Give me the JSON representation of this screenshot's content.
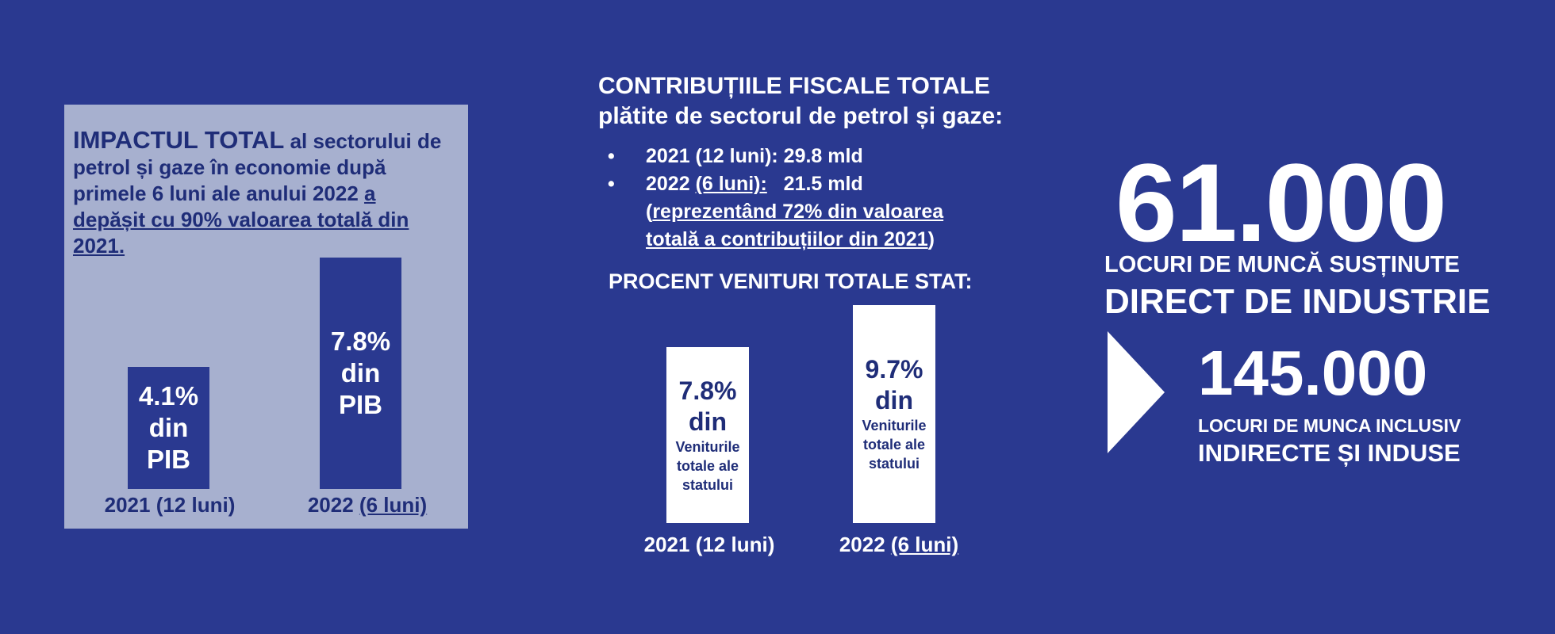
{
  "left_panel": {
    "title_bold": "IMPACTUL TOTAL",
    "title_rest": " al sectorului de petrol și gaze în economie după primele 6 luni ale anului 2022 ",
    "title_underlined": "a depășit cu 90% valoarea totală din 2021.",
    "bar_unit_1": "din",
    "bar_unit_2": "PIB",
    "label_2021": "2021 (12 luni)",
    "label_2022_prefix": "2022 ",
    "label_2022_underlined": "(6 luni)"
  },
  "middle": {
    "title_line1": "CONTRIBUȚIILE FISCALE TOTALE",
    "title_line2": "plătite de sectorul de petrol și gaze:",
    "bullet_char": "•",
    "bullet1": "2021 (12 luni): 29.8 mld",
    "bullet2_prefix": "2022 ",
    "bullet2_underlined": "(6 luni):",
    "bullet2_value": "   21.5 mld",
    "bullet2_note_open": "(",
    "bullet2_note_underlined": "reprezentând 72% din valoarea totală a contribuțiilor din 2021",
    "bullet2_note_close": ")",
    "subtitle": "PROCENT VENITURI TOTALE STAT:",
    "bar_unit": "din",
    "bar_desc_1": "Veniturile",
    "bar_desc_2": "totale ale",
    "bar_desc_3": "statului",
    "label_2021": "2021 (12 luni)",
    "label_2022_prefix": "2022 ",
    "label_2022_underlined": "(6 luni)"
  },
  "right": {
    "jobs_number": "61.000",
    "jobs_line1": "LOCURI DE MUNCĂ SUSȚINUTE",
    "jobs_line2": "DIRECT DE INDUSTRIE",
    "total_number": "145.000",
    "total_line1": "LOCURI DE MUNCA INCLUSIV",
    "total_line2": "INDIRECTE ȘI INDUSE"
  },
  "colors": {
    "background": "#2a3990",
    "panel": "#a7b0cf",
    "dark_text": "#1f2d78",
    "white": "#ffffff"
  },
  "chart_data": [
    {
      "type": "bar",
      "categories": [
        "2021 (12 luni)",
        "2022 (6 luni)"
      ],
      "values": [
        4.1,
        7.8
      ],
      "value_labels": [
        "4.1%",
        "7.8%"
      ]
    },
    {
      "type": "bar",
      "categories": [
        "2021 (12 luni)",
        "2022 (6 luni)"
      ],
      "values": [
        7.8,
        9.7
      ],
      "value_labels": [
        "7.8%",
        "9.7%"
      ]
    }
  ]
}
